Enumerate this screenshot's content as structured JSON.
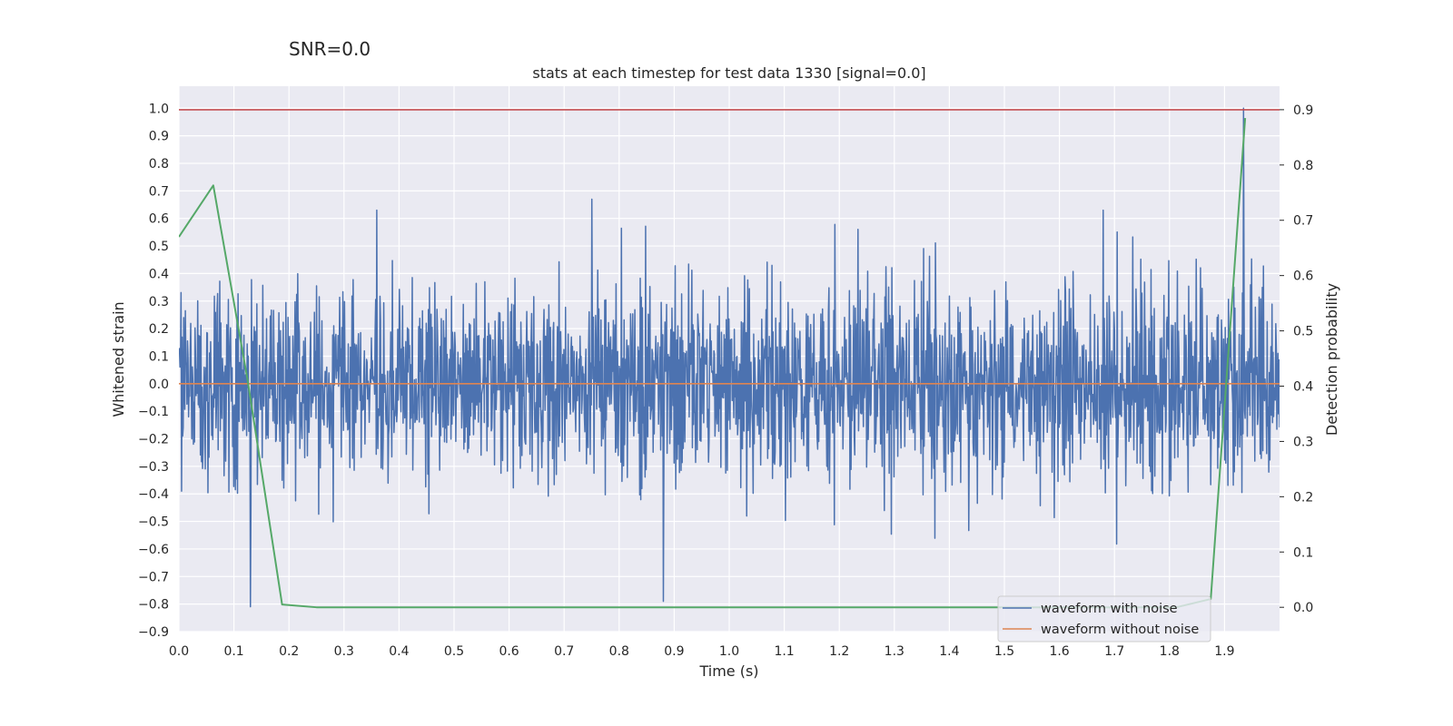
{
  "suptitle": "SNR=0.0",
  "title": "stats at each timestep for test data 1330 [signal=0.0]",
  "colors": {
    "background": "#eaeaf2",
    "grid": "#ffffff",
    "noise": "#4c72b0",
    "clean": "#dd8452",
    "prob": "#55a868",
    "threshold": "#c44e52"
  },
  "chart_data": {
    "type": "line",
    "xlabel": "Time (s)",
    "ylabel": "Whitened strain",
    "y2label": "Detection probability",
    "xlim": [
      0.0,
      2.0
    ],
    "ylim": [
      -0.9,
      1.08
    ],
    "y2lim": [
      -0.044,
      0.9425
    ],
    "x_ticks": [
      "0.0",
      "0.1",
      "0.2",
      "0.3",
      "0.4",
      "0.5",
      "0.6",
      "0.7",
      "0.8",
      "0.9",
      "1.0",
      "1.1",
      "1.2",
      "1.3",
      "1.4",
      "1.5",
      "1.6",
      "1.7",
      "1.8",
      "1.9"
    ],
    "y_ticks": [
      "1.0",
      "0.9",
      "0.8",
      "0.7",
      "0.6",
      "0.5",
      "0.4",
      "0.3",
      "0.2",
      "0.1",
      "0.0",
      "−0.1",
      "−0.2",
      "−0.3",
      "−0.4",
      "−0.5",
      "−0.6",
      "−0.7",
      "−0.8",
      "−0.9"
    ],
    "y2_ticks": [
      "0.9",
      "0.8",
      "0.7",
      "0.6",
      "0.5",
      "0.4",
      "0.3",
      "0.2",
      "0.1",
      "0.0"
    ],
    "threshold": 0.9,
    "grid": true,
    "legend_position": "lower-right",
    "series": [
      {
        "name": "waveform with noise",
        "axis": "left",
        "n_samples": 2048,
        "x_start": 0.0,
        "x_end": 2.0,
        "y_range_approx": [
          -0.81,
          1.0
        ],
        "peaks": [
          {
            "x": 0.13,
            "y": -0.81
          },
          {
            "x": 0.36,
            "y": 0.63
          },
          {
            "x": 0.75,
            "y": 0.67
          },
          {
            "x": 0.88,
            "y": -0.79
          },
          {
            "x": 1.68,
            "y": 0.63
          },
          {
            "x": 1.935,
            "y": 1.0
          }
        ]
      },
      {
        "name": "waveform without noise",
        "axis": "left",
        "x": [
          0.0,
          2.0
        ],
        "y": [
          0.0,
          0.0
        ]
      },
      {
        "axis": "right",
        "x": [
          0.0,
          0.0625,
          0.125,
          0.1875,
          0.25,
          0.3125,
          1.8125,
          1.875,
          1.9375
        ],
        "y": [
          0.67,
          0.763,
          0.41,
          0.005,
          0.0,
          0.0,
          0.0,
          0.015,
          0.885
        ]
      }
    ]
  }
}
